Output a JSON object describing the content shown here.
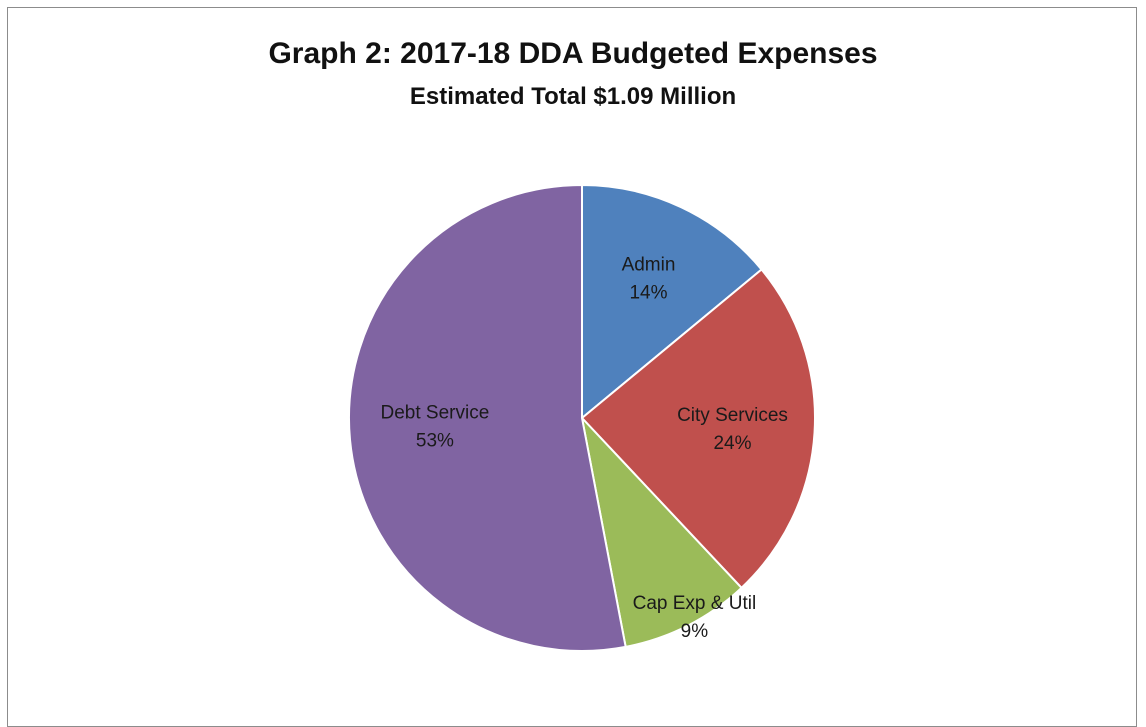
{
  "chart_data": {
    "type": "pie",
    "title": "Graph 2:  2017-18 DDA Budgeted Expenses",
    "subtitle": "Estimated Total $1.09 Million",
    "slices": [
      {
        "label": "Admin",
        "value": 14,
        "display": "14%",
        "color": "#4f81bd"
      },
      {
        "label": "City Services",
        "value": 24,
        "display": "24%",
        "color": "#c0504d"
      },
      {
        "label": "Cap Exp & Util",
        "value": 9,
        "display": "9%",
        "color": "#9bbb59"
      },
      {
        "label": "Debt Service",
        "value": 53,
        "display": "53%",
        "color": "#8064a2"
      }
    ],
    "legend": "none"
  }
}
